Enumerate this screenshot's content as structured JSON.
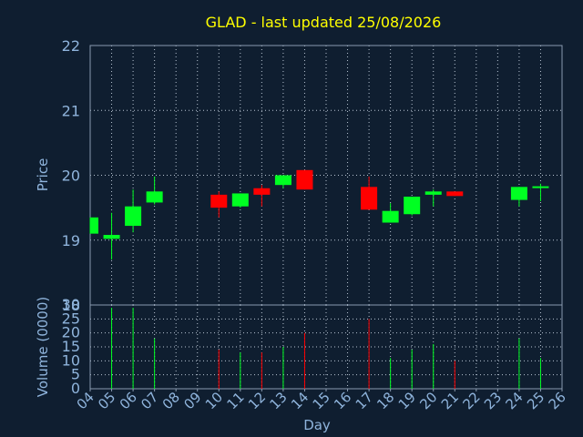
{
  "colors": {
    "background": "#0f1e30",
    "axis": "#8a9bb0",
    "grid": "#b8c4d2",
    "title": "#ffff00",
    "label": "#8fb4dc",
    "up": "#00ff22",
    "down": "#ff0000"
  },
  "chart_data": {
    "type": "candlestick",
    "title": "GLAD - last updated 25/08/2026",
    "price_panel": {
      "ylabel": "Price",
      "ylim": [
        18,
        22
      ],
      "yticks": [
        "18",
        "19",
        "20",
        "21",
        "22"
      ]
    },
    "volume_panel": {
      "ylabel": "Volume (0000)",
      "ylim": [
        0,
        30
      ],
      "yticks": [
        "0",
        "5",
        "10",
        "15",
        "20",
        "25",
        "30"
      ]
    },
    "xlabel": "Day",
    "xticks": [
      "04",
      "05",
      "06",
      "07",
      "08",
      "09",
      "10",
      "11",
      "12",
      "13",
      "14",
      "15",
      "16",
      "17",
      "18",
      "19",
      "20",
      "21",
      "22",
      "23",
      "24",
      "25",
      "26"
    ],
    "grid": true,
    "candles": [
      {
        "day": "04",
        "open": 19.1,
        "close": 19.35,
        "high": 19.35,
        "low": 19.1,
        "volume": 0
      },
      {
        "day": "05",
        "open": 19.02,
        "close": 19.08,
        "high": 19.42,
        "low": 18.7,
        "volume": 29
      },
      {
        "day": "06",
        "open": 19.22,
        "close": 19.52,
        "high": 19.78,
        "low": 19.12,
        "volume": 29
      },
      {
        "day": "07",
        "open": 19.58,
        "close": 19.75,
        "high": 19.98,
        "low": 19.55,
        "volume": 18
      },
      {
        "day": "10",
        "open": 19.7,
        "close": 19.5,
        "high": 19.75,
        "low": 19.35,
        "volume": 14
      },
      {
        "day": "11",
        "open": 19.52,
        "close": 19.72,
        "high": 19.72,
        "low": 19.5,
        "volume": 13
      },
      {
        "day": "12",
        "open": 19.8,
        "close": 19.7,
        "high": 19.85,
        "low": 19.52,
        "volume": 13
      },
      {
        "day": "13",
        "open": 19.85,
        "close": 20.0,
        "high": 20.0,
        "low": 19.8,
        "volume": 15
      },
      {
        "day": "14",
        "open": 20.08,
        "close": 19.78,
        "high": 20.08,
        "low": 19.78,
        "volume": 20
      },
      {
        "day": "17",
        "open": 19.82,
        "close": 19.47,
        "high": 19.98,
        "low": 19.47,
        "volume": 25
      },
      {
        "day": "18",
        "open": 19.27,
        "close": 19.45,
        "high": 19.57,
        "low": 19.27,
        "volume": 11
      },
      {
        "day": "19",
        "open": 19.4,
        "close": 19.67,
        "high": 19.67,
        "low": 19.38,
        "volume": 14
      },
      {
        "day": "20",
        "open": 19.7,
        "close": 19.75,
        "high": 19.78,
        "low": 19.52,
        "volume": 16
      },
      {
        "day": "21",
        "open": 19.75,
        "close": 19.68,
        "high": 19.75,
        "low": 19.68,
        "volume": 10
      },
      {
        "day": "24",
        "open": 19.62,
        "close": 19.82,
        "high": 19.82,
        "low": 19.52,
        "volume": 18
      },
      {
        "day": "25",
        "open": 19.82,
        "close": 19.83,
        "high": 19.87,
        "low": 19.6,
        "volume": 11
      }
    ]
  }
}
